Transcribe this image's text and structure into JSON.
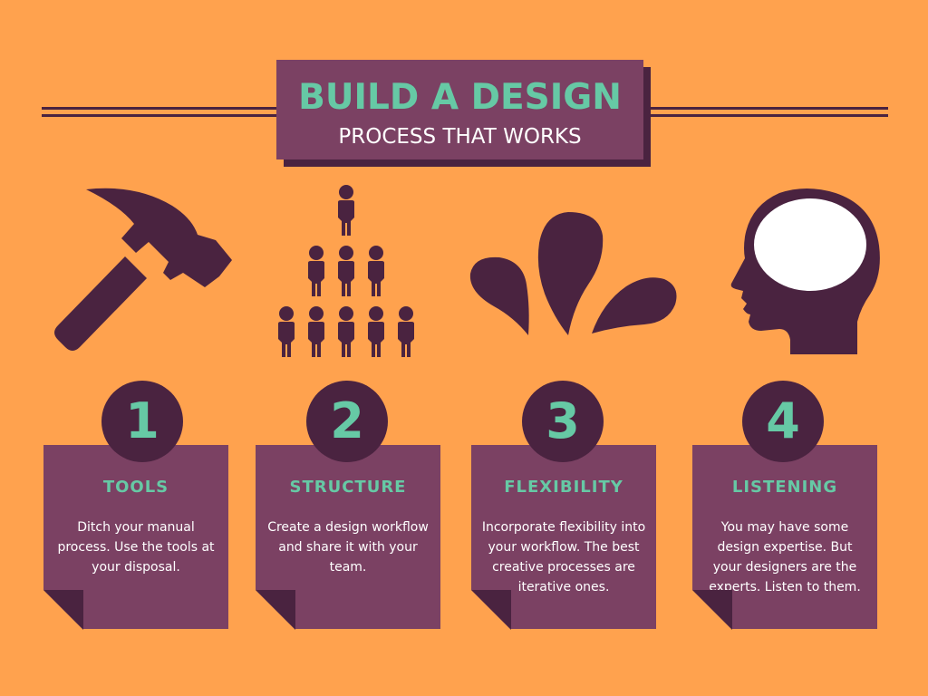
{
  "title": {
    "main": "BUILD A DESIGN",
    "sub": "PROCESS THAT WORKS"
  },
  "colors": {
    "background": "#FFA24E",
    "purple": "#7B4163",
    "dark_purple": "#4A2340",
    "teal": "#66C9A5",
    "white": "#FFFFFF"
  },
  "icons": [
    "hammer-icon",
    "people-pyramid-icon",
    "splash-icon",
    "head-icon"
  ],
  "steps": [
    {
      "number": "1",
      "title": "TOOLS",
      "text": "Ditch your manual process. Use the tools at your disposal."
    },
    {
      "number": "2",
      "title": "STRUCTURE",
      "text": "Create a design workflow and share it with your team."
    },
    {
      "number": "3",
      "title": "FLEXIBILITY",
      "text": "Incorporate flexibility into your workflow. The best creative processes are iterative ones."
    },
    {
      "number": "4",
      "title": "LISTENING",
      "text": "You may have some design expertise. But your designers are the experts. Listen to them."
    }
  ]
}
